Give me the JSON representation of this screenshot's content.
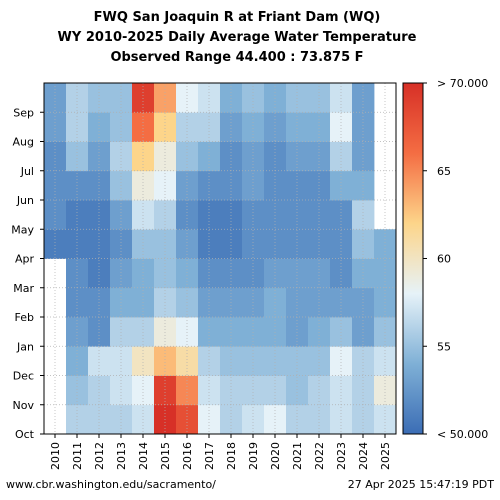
{
  "chart_data": {
    "type": "heatmap",
    "title_lines": [
      "FWQ San Joaquin R at Friant Dam (WQ)",
      "WY 2010-2025 Daily Average Water Temperature",
      "Observed Range 44.400 : 73.875 F"
    ],
    "x_categories": [
      "2010",
      "2011",
      "2012",
      "2013",
      "2014",
      "2015",
      "2016",
      "2017",
      "2018",
      "2019",
      "2020",
      "2021",
      "2022",
      "2023",
      "2024",
      "2025"
    ],
    "y_categories": [
      "Oct",
      "Nov",
      "Dec",
      "Jan",
      "Feb",
      "Mar",
      "Apr",
      "May",
      "Jun",
      "Jul",
      "Aug",
      "Sep"
    ],
    "colorbar": {
      "min": 50,
      "max": 70,
      "tick_values": [
        50,
        55,
        60,
        65,
        70
      ],
      "tick_labels": [
        "< 50.000",
        "55",
        "60",
        "65",
        "> 70.000"
      ],
      "colors": [
        "#3b6db5",
        "#7fb0d6",
        "#e6f2f8",
        "#fdd58a",
        "#f46d43",
        "#d73027"
      ]
    },
    "monthly_values_F": {
      "2010": [
        null,
        null,
        null,
        null,
        null,
        null,
        51,
        52,
        52,
        52,
        53,
        53
      ],
      "2011": [
        56,
        55,
        54,
        53,
        52,
        52,
        51,
        51,
        52,
        55,
        56,
        56
      ],
      "2012": [
        56,
        56,
        57,
        52,
        52,
        51,
        51,
        51,
        52,
        53,
        54,
        55
      ],
      "2013": [
        56,
        57,
        57,
        56,
        54,
        53,
        52,
        53,
        55,
        56,
        55,
        55
      ],
      "2014": [
        57,
        58,
        60,
        56,
        54,
        54,
        55,
        57,
        59,
        62,
        66,
        69
      ],
      "2015": [
        70,
        69,
        63,
        59,
        56,
        55,
        55,
        56,
        58,
        59,
        62,
        64
      ],
      "2016": [
        68,
        65,
        61,
        58,
        55,
        54,
        53,
        52,
        53,
        55,
        56,
        58
      ],
      "2017": [
        58,
        57,
        56,
        54,
        53,
        52,
        51,
        51,
        52,
        54,
        56,
        57
      ],
      "2018": [
        56,
        56,
        55,
        54,
        53,
        52,
        51,
        51,
        52,
        52,
        53,
        54
      ],
      "2019": [
        57,
        56,
        55,
        54,
        53,
        52,
        52,
        52,
        53,
        53,
        54,
        55
      ],
      "2020": [
        58,
        56,
        55,
        54,
        54,
        53,
        52,
        52,
        52,
        52,
        53,
        54
      ],
      "2021": [
        56,
        55,
        55,
        53,
        53,
        53,
        52,
        52,
        52,
        53,
        54,
        55
      ],
      "2022": [
        56,
        56,
        55,
        54,
        53,
        53,
        52,
        52,
        52,
        53,
        54,
        55
      ],
      "2023": [
        57,
        57,
        58,
        55,
        53,
        52,
        52,
        52,
        54,
        56,
        58,
        57
      ],
      "2024": [
        56,
        56,
        56,
        53,
        53,
        54,
        55,
        56,
        54,
        53,
        53,
        53
      ],
      "2025": [
        57,
        59,
        57,
        55,
        54,
        54,
        54,
        null,
        null,
        null,
        null,
        null
      ]
    },
    "notes": "values read approximately from color scale; white cells are missing data"
  },
  "footer": {
    "left": "www.cbr.washington.edu/sacramento/",
    "right": "27 Apr 2025 15:47:19 PDT"
  }
}
